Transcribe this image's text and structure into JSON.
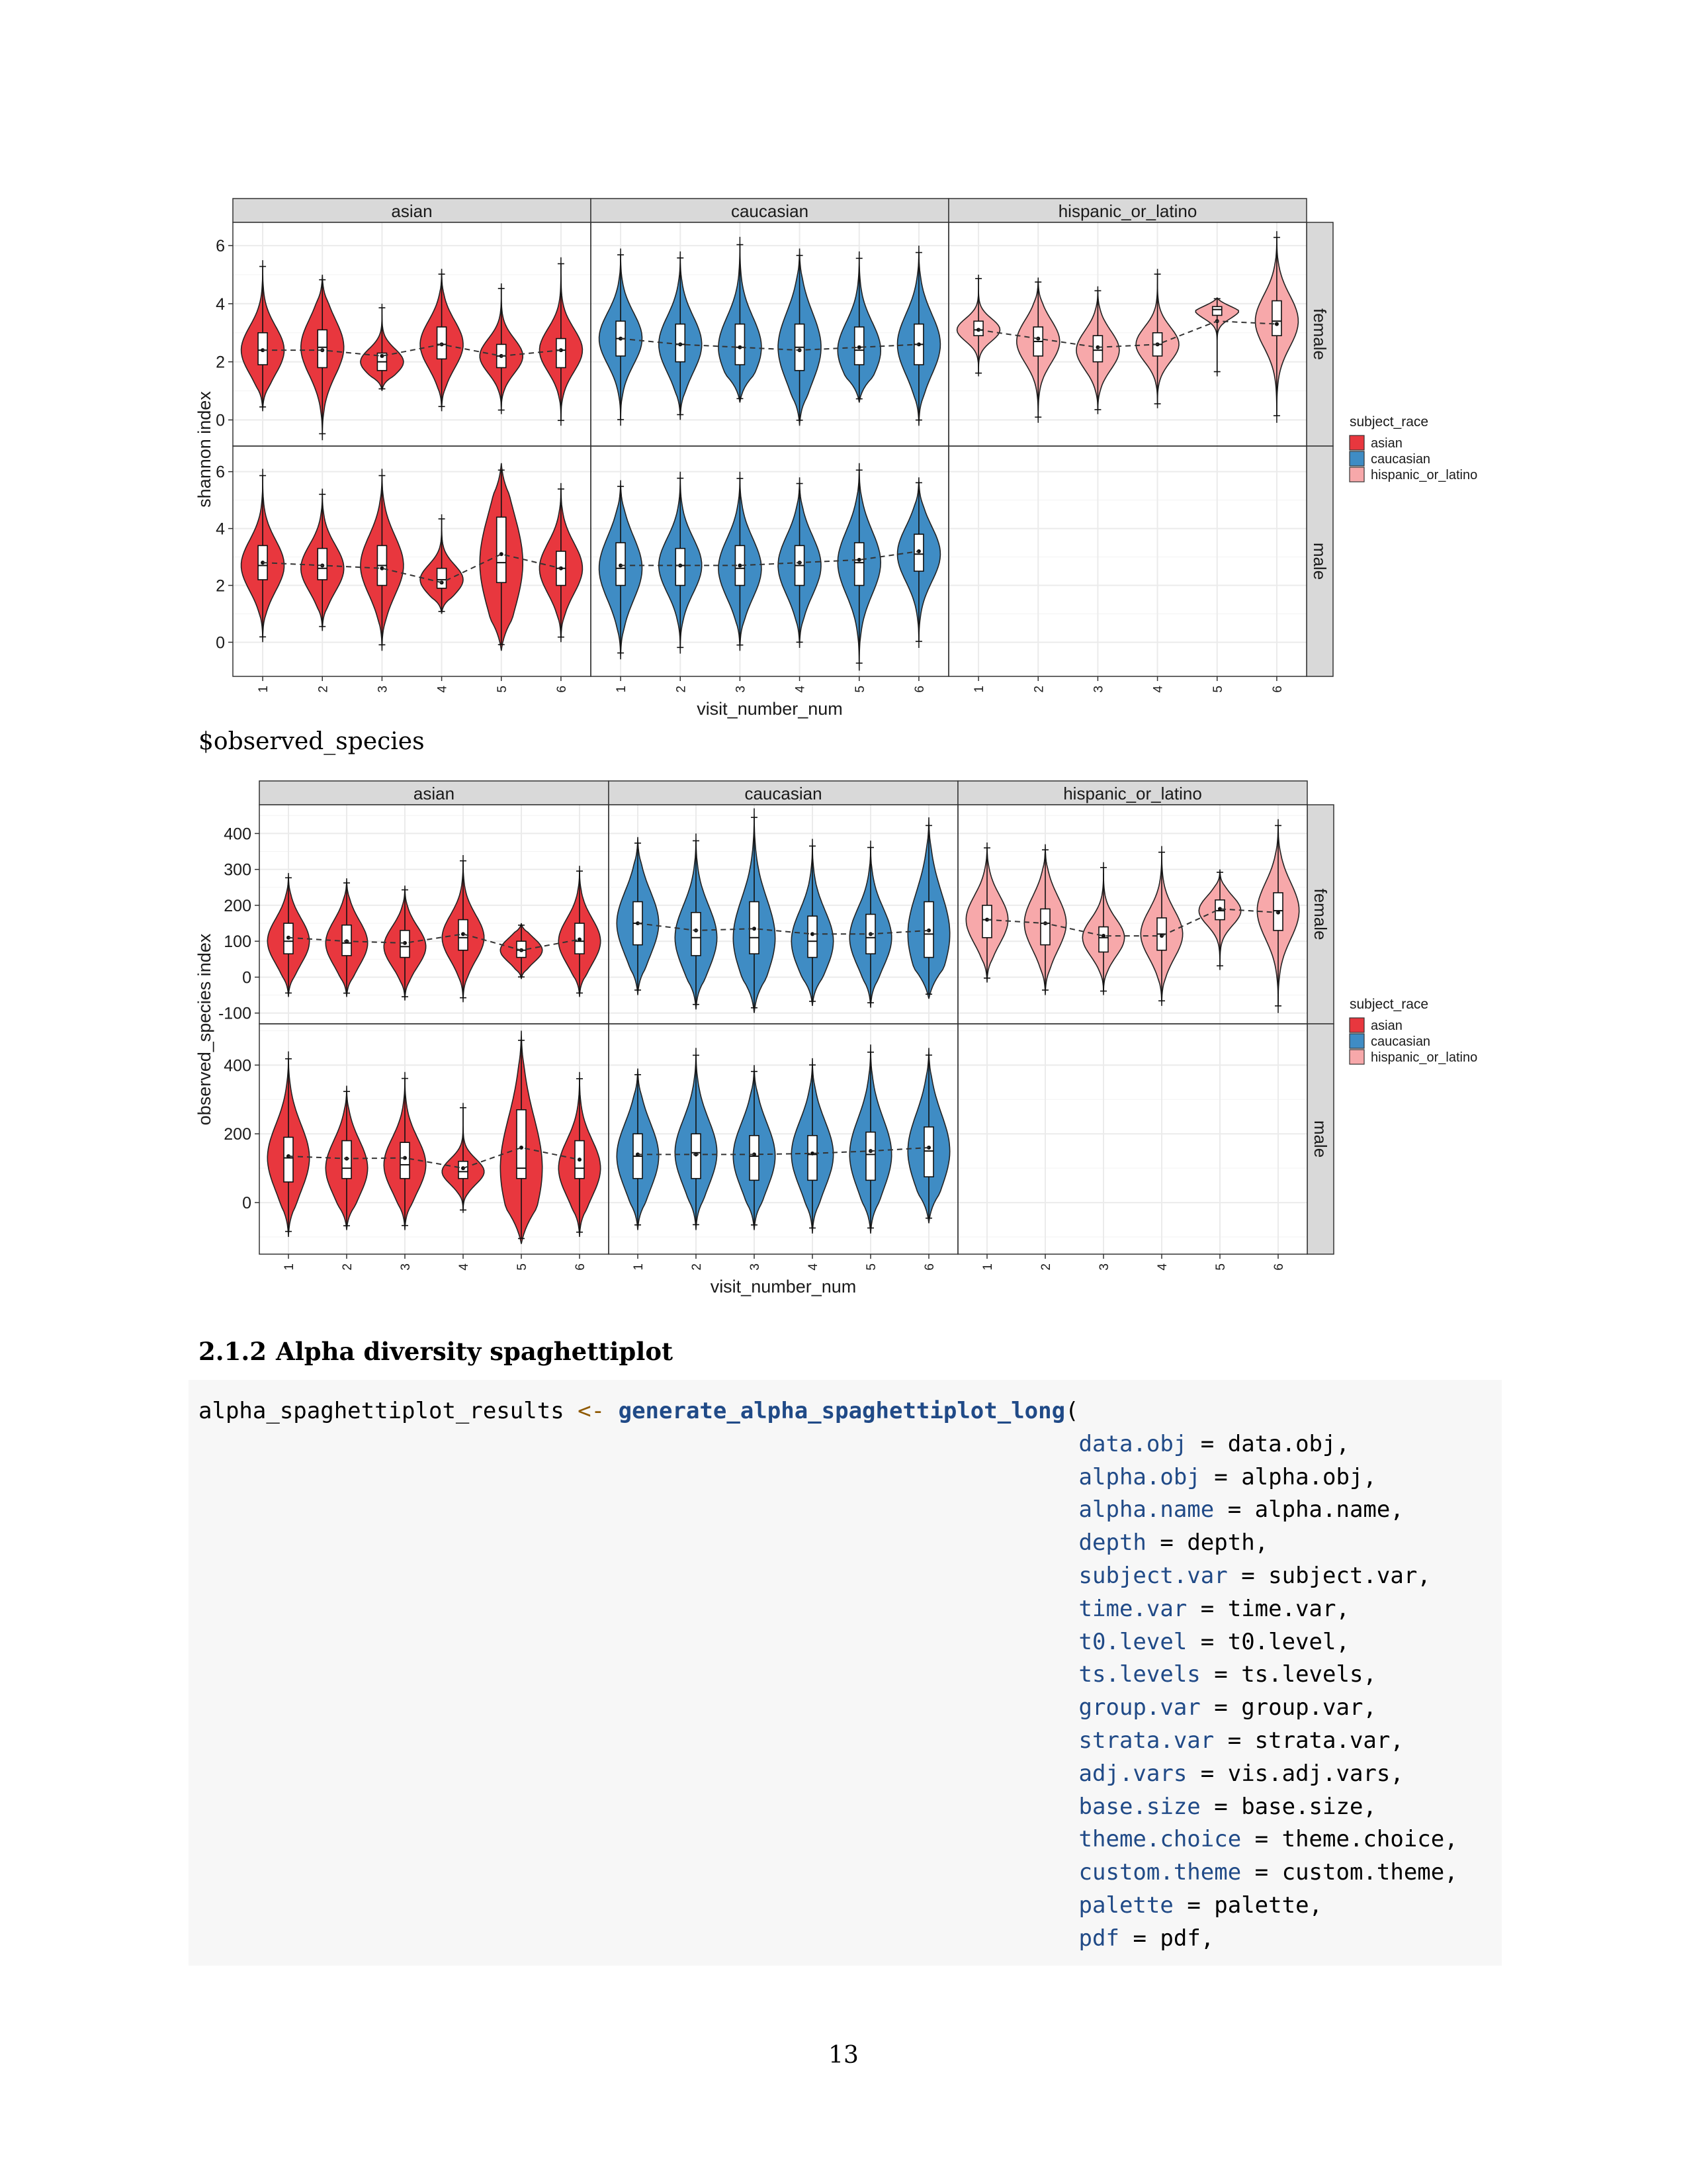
{
  "charts": [
    {
      "id": "shannon",
      "ylabel": "shannon index",
      "xlabel": "visit_number_num",
      "columns": [
        "asian",
        "caucasian",
        "hispanic_or_latino"
      ],
      "rows": [
        "female",
        "male"
      ],
      "yticks": [
        "0",
        "2",
        "4",
        "6"
      ],
      "xticks": [
        "1",
        "2",
        "3",
        "4",
        "5",
        "6"
      ],
      "legend_title": "subject_race",
      "legend_items": [
        "asian",
        "caucasian",
        "hispanic_or_latino"
      ]
    },
    {
      "id": "observed",
      "ylabel": "observed_species index",
      "xlabel": "visit_number_num",
      "columns": [
        "asian",
        "caucasian",
        "hispanic_or_latino"
      ],
      "rows": [
        "female",
        "male"
      ],
      "yticks_top": [
        "-100",
        "0",
        "100",
        "200",
        "300",
        "400"
      ],
      "yticks_bottom": [
        "0",
        "200",
        "400"
      ],
      "xticks": [
        "1",
        "2",
        "3",
        "4",
        "5",
        "6"
      ],
      "legend_title": "subject_race",
      "legend_items": [
        "asian",
        "caucasian",
        "hispanic_or_latino"
      ]
    }
  ],
  "colors": {
    "asian": "#e8373e",
    "caucasian": "#3f8cc4",
    "hispanic_or_latino": "#f7a8aa",
    "strip": "#d9d9d9"
  },
  "chart_data": [
    {
      "type": "violin",
      "ylabel": "shannon index",
      "xlabel": "visit_number_num",
      "facet_columns": [
        "asian",
        "caucasian",
        "hispanic_or_latino"
      ],
      "facet_rows": [
        "female",
        "male"
      ],
      "x": [
        1,
        2,
        3,
        4,
        5,
        6
      ],
      "ylim": [
        -1.2,
        6.8
      ],
      "series": [
        {
          "name": "asian",
          "row": "female",
          "median": [
            2.4,
            2.5,
            2.0,
            2.6,
            2.2,
            2.4
          ],
          "q1": [
            1.9,
            1.8,
            1.7,
            2.1,
            1.8,
            1.8
          ],
          "q3": [
            3.0,
            3.1,
            2.3,
            3.2,
            2.6,
            2.8
          ],
          "min": [
            0.3,
            -0.7,
            1.0,
            0.3,
            0.2,
            -0.2
          ],
          "max": [
            5.5,
            5.0,
            4.0,
            5.2,
            4.7,
            5.6
          ],
          "mean": [
            2.4,
            2.4,
            2.2,
            2.6,
            2.2,
            2.4
          ]
        },
        {
          "name": "caucasian",
          "row": "female",
          "median": [
            2.8,
            2.6,
            2.5,
            2.5,
            2.4,
            2.6
          ],
          "q1": [
            2.2,
            2.0,
            1.9,
            1.7,
            1.9,
            1.9
          ],
          "q3": [
            3.4,
            3.3,
            3.3,
            3.3,
            3.2,
            3.3
          ],
          "min": [
            -0.2,
            0.0,
            0.6,
            -0.2,
            0.6,
            -0.2
          ],
          "max": [
            5.9,
            5.8,
            6.3,
            5.9,
            5.8,
            6.0
          ],
          "mean": [
            2.8,
            2.6,
            2.5,
            2.4,
            2.5,
            2.6
          ]
        },
        {
          "name": "hispanic_or_latino",
          "row": "female",
          "median": [
            3.1,
            2.7,
            2.4,
            2.6,
            3.8,
            3.4
          ],
          "q1": [
            2.9,
            2.2,
            2.0,
            2.2,
            3.6,
            2.9
          ],
          "q3": [
            3.4,
            3.2,
            2.9,
            3.0,
            3.9,
            4.1
          ],
          "min": [
            1.5,
            -0.1,
            0.2,
            0.4,
            1.5,
            -0.1
          ],
          "max": [
            5.0,
            4.9,
            4.6,
            5.2,
            4.2,
            6.5
          ],
          "mean": [
            3.1,
            2.8,
            2.5,
            2.6,
            3.4,
            3.3
          ]
        },
        {
          "name": "asian",
          "row": "male",
          "median": [
            2.7,
            2.6,
            2.7,
            2.2,
            2.8,
            2.6
          ],
          "q1": [
            2.2,
            2.2,
            2.0,
            1.9,
            2.1,
            2.0
          ],
          "q3": [
            3.4,
            3.3,
            3.4,
            2.6,
            4.4,
            3.2
          ],
          "min": [
            0.0,
            0.4,
            -0.3,
            1.0,
            -0.3,
            0.0
          ],
          "max": [
            6.1,
            5.4,
            6.1,
            4.5,
            6.3,
            5.6
          ],
          "mean": [
            2.8,
            2.7,
            2.6,
            2.1,
            3.1,
            2.6
          ]
        },
        {
          "name": "caucasian",
          "row": "male",
          "median": [
            2.6,
            2.7,
            2.6,
            2.7,
            2.8,
            3.1
          ],
          "q1": [
            2.0,
            2.0,
            2.0,
            2.0,
            2.0,
            2.5
          ],
          "q3": [
            3.5,
            3.3,
            3.4,
            3.4,
            3.5,
            3.8
          ],
          "min": [
            -0.6,
            -0.4,
            -0.3,
            -0.2,
            -1.0,
            -0.2
          ],
          "max": [
            5.7,
            6.0,
            6.0,
            5.8,
            6.3,
            5.8
          ],
          "mean": [
            2.7,
            2.7,
            2.7,
            2.8,
            2.9,
            3.2
          ]
        }
      ]
    },
    {
      "type": "violin",
      "ylabel": "observed_species index",
      "xlabel": "visit_number_num",
      "facet_columns": [
        "asian",
        "caucasian",
        "hispanic_or_latino"
      ],
      "facet_rows": [
        "female",
        "male"
      ],
      "x": [
        1,
        2,
        3,
        4,
        5,
        6
      ],
      "ylim_top": [
        -130,
        480
      ],
      "ylim_bottom": [
        -150,
        520
      ],
      "series": [
        {
          "name": "asian",
          "row": "female",
          "median": [
            100,
            95,
            85,
            110,
            75,
            100
          ],
          "q1": [
            65,
            60,
            55,
            75,
            55,
            65
          ],
          "q3": [
            150,
            145,
            130,
            160,
            100,
            150
          ],
          "min": [
            -55,
            -55,
            -65,
            -70,
            -5,
            -55
          ],
          "max": [
            290,
            275,
            255,
            340,
            150,
            310
          ],
          "mean": [
            110,
            100,
            95,
            120,
            75,
            105
          ]
        },
        {
          "name": "caucasian",
          "row": "female",
          "median": [
            150,
            110,
            110,
            100,
            110,
            120
          ],
          "q1": [
            90,
            60,
            65,
            55,
            65,
            55
          ],
          "q3": [
            210,
            180,
            210,
            170,
            175,
            210
          ],
          "min": [
            -50,
            -90,
            -100,
            -80,
            -85,
            -60
          ],
          "max": [
            390,
            400,
            470,
            385,
            380,
            445
          ],
          "mean": [
            150,
            130,
            135,
            120,
            120,
            130
          ]
        },
        {
          "name": "hispanic_or_latino",
          "row": "female",
          "median": [
            160,
            150,
            110,
            120,
            185,
            185
          ],
          "q1": [
            110,
            90,
            70,
            75,
            160,
            130
          ],
          "q3": [
            200,
            190,
            140,
            165,
            215,
            235
          ],
          "min": [
            -15,
            -50,
            -50,
            -80,
            20,
            -100
          ],
          "max": [
            375,
            370,
            320,
            365,
            300,
            440
          ],
          "mean": [
            160,
            150,
            115,
            115,
            190,
            180
          ]
        },
        {
          "name": "asian",
          "row": "male",
          "median": [
            130,
            100,
            110,
            90,
            100,
            100
          ],
          "q1": [
            60,
            70,
            70,
            70,
            70,
            70
          ],
          "q3": [
            190,
            180,
            175,
            120,
            270,
            180
          ],
          "min": [
            -100,
            -80,
            -80,
            -30,
            -120,
            -100
          ],
          "max": [
            440,
            340,
            380,
            290,
            500,
            380
          ],
          "mean": [
            135,
            128,
            130,
            100,
            160,
            125
          ]
        },
        {
          "name": "caucasian",
          "row": "male",
          "median": [
            135,
            145,
            135,
            140,
            140,
            150
          ],
          "q1": [
            70,
            70,
            65,
            65,
            65,
            75
          ],
          "q3": [
            200,
            200,
            195,
            195,
            205,
            220
          ],
          "min": [
            -80,
            -80,
            -80,
            -90,
            -90,
            -60
          ],
          "max": [
            390,
            450,
            400,
            420,
            460,
            450
          ],
          "mean": [
            140,
            140,
            140,
            143,
            150,
            160
          ]
        }
      ]
    }
  ],
  "caption_observed": "$observed_species",
  "section": {
    "number": "2.1.2",
    "title": "Alpha diversity spaghettiplot"
  },
  "code": {
    "lhs": "alpha_spaghettiplot_results ",
    "assign": "<-",
    "fn": "generate_alpha_spaghettiplot_long",
    "open": "(",
    "args": [
      {
        "name": "data.obj",
        "eq": " = ",
        "value": "data.obj,"
      },
      {
        "name": "alpha.obj",
        "eq": " = ",
        "value": "alpha.obj,"
      },
      {
        "name": "alpha.name",
        "eq": " = ",
        "value": "alpha.name,"
      },
      {
        "name": "depth",
        "eq": " = ",
        "value": "depth,"
      },
      {
        "name": "subject.var",
        "eq": " = ",
        "value": "subject.var,"
      },
      {
        "name": "time.var",
        "eq": " = ",
        "value": "time.var,"
      },
      {
        "name": "t0.level",
        "eq": " = ",
        "value": "t0.level,"
      },
      {
        "name": "ts.levels",
        "eq": " = ",
        "value": "ts.levels,"
      },
      {
        "name": "group.var",
        "eq": " = ",
        "value": "group.var,"
      },
      {
        "name": "strata.var",
        "eq": " = ",
        "value": "strata.var,"
      },
      {
        "name": "adj.vars",
        "eq": " = ",
        "value": "vis.adj.vars,"
      },
      {
        "name": "base.size",
        "eq": " = ",
        "value": "base.size,"
      },
      {
        "name": "theme.choice",
        "eq": " = ",
        "value": "theme.choice,"
      },
      {
        "name": "custom.theme",
        "eq": " = ",
        "value": "custom.theme,"
      },
      {
        "name": "palette",
        "eq": " = ",
        "value": "palette,"
      },
      {
        "name": "pdf",
        "eq": " = ",
        "value": "pdf,"
      }
    ]
  },
  "page_number": "13"
}
